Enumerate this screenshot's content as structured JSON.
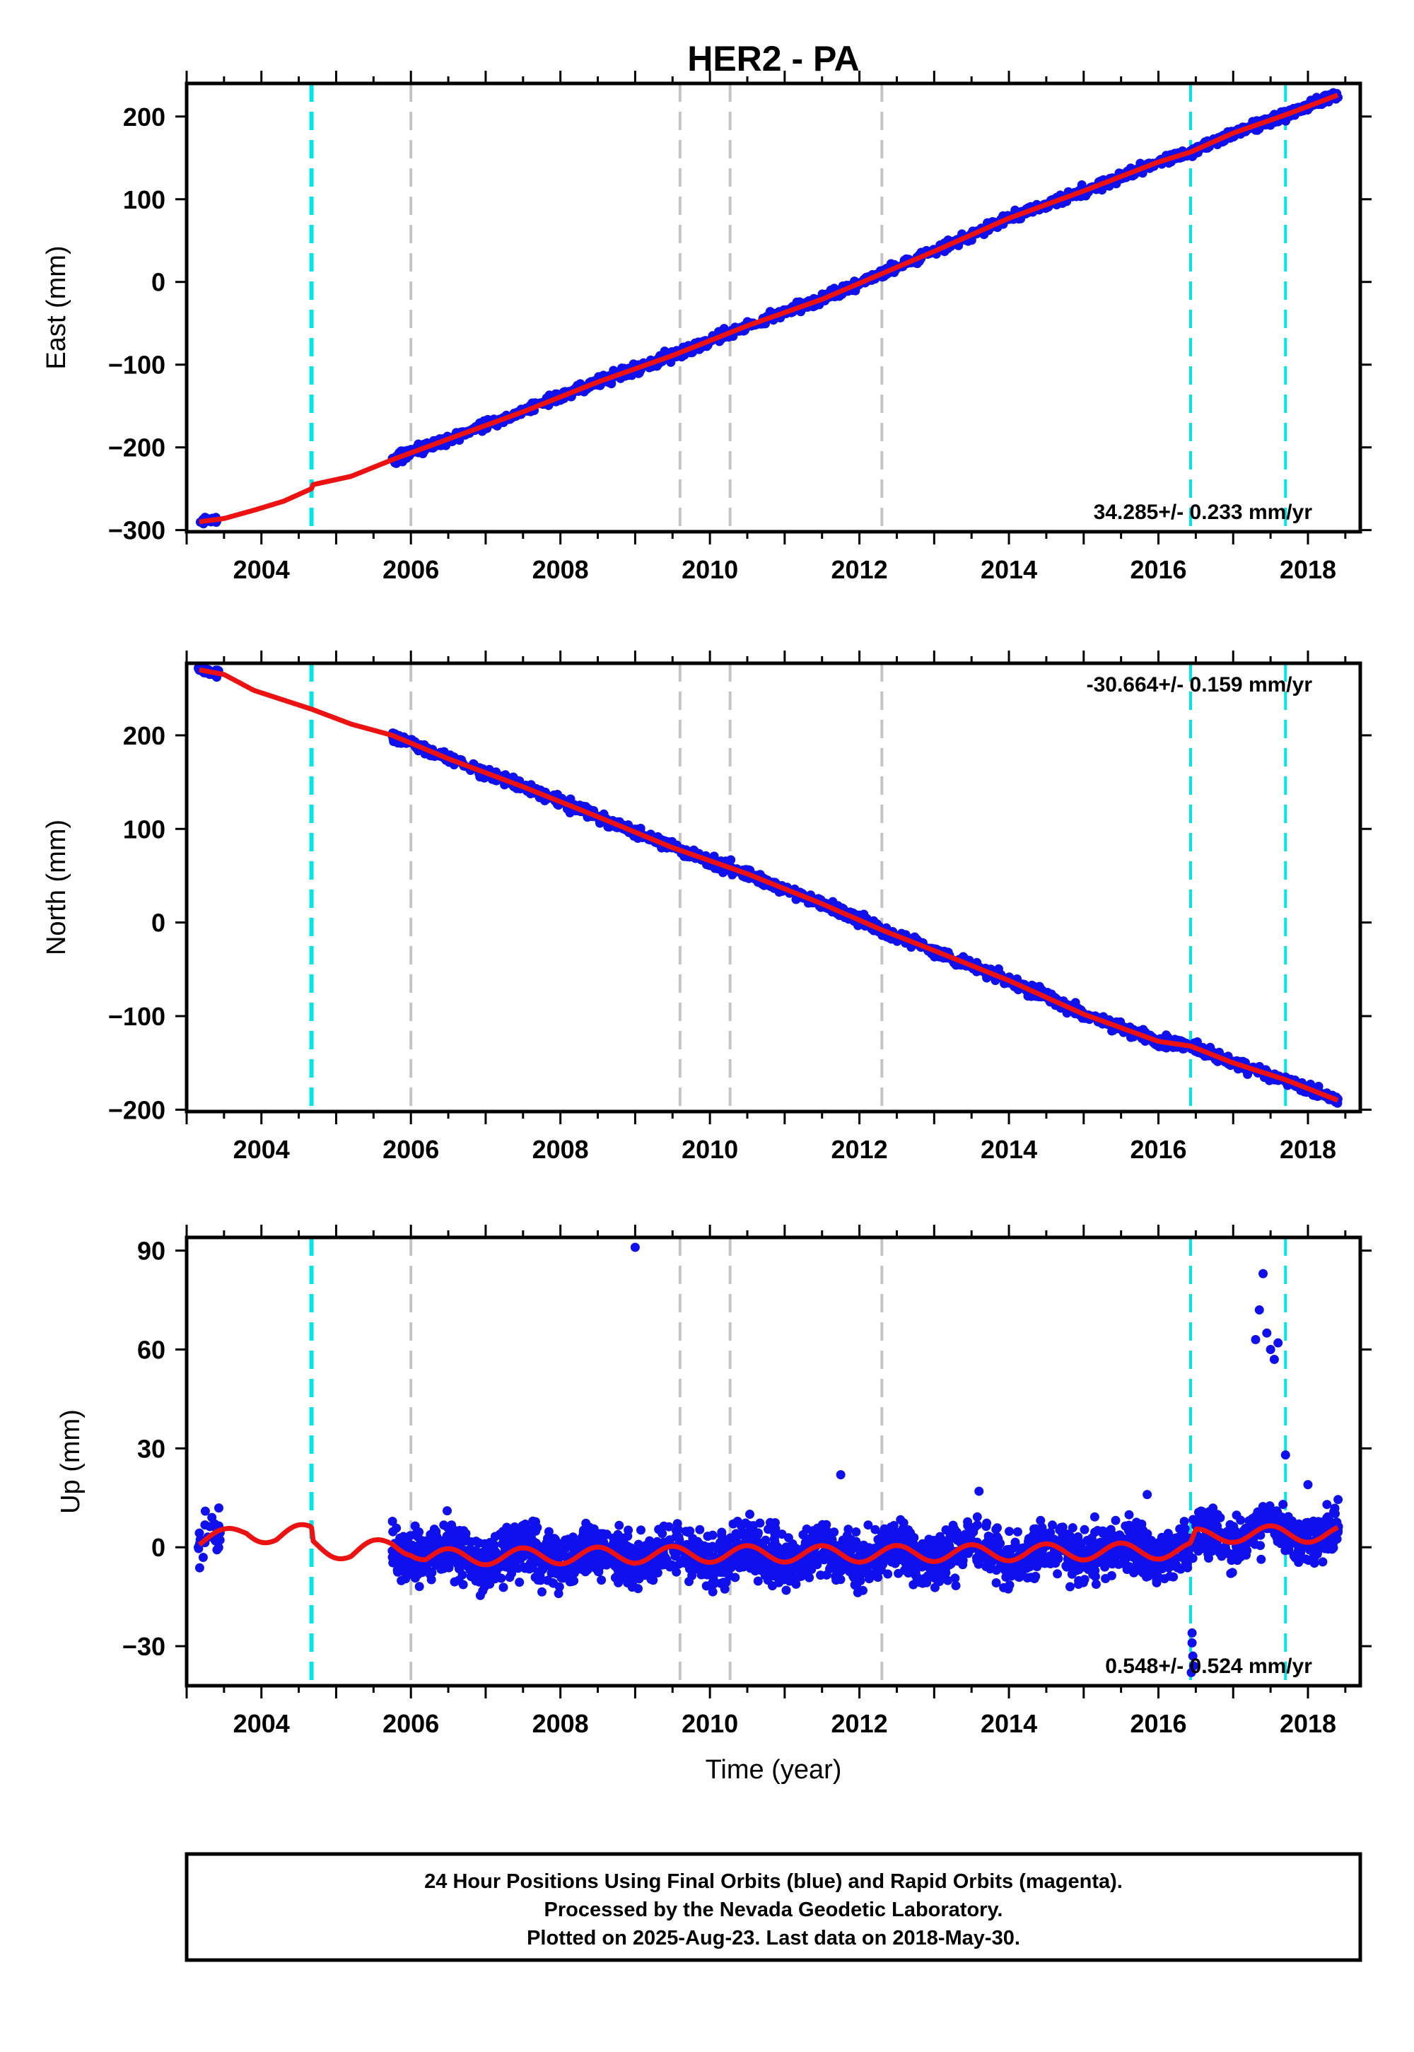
{
  "title": "HER2 - PA",
  "xlabel": "Time (year)",
  "colors": {
    "final_points": "#1010ee",
    "model_line": "#ee1111",
    "equipment_change": "#00e6e6",
    "other_event": "#c4c4c4",
    "frame": "#000000"
  },
  "footer": {
    "line1": "24 Hour Positions Using Final Orbits (blue) and Rapid Orbits (magenta).",
    "line2": "Processed by the Nevada Geodetic Laboratory.",
    "line3": "Plotted on 2025-Aug-23. Last data on 2018-May-30."
  },
  "chart_data": [
    {
      "type": "scatter",
      "component": "east",
      "ylabel": "East (mm)",
      "xlim": [
        2003.0,
        2018.7
      ],
      "ylim": [
        -302,
        240
      ],
      "xticks": [
        2004,
        2006,
        2008,
        2010,
        2012,
        2014,
        2016,
        2018
      ],
      "yticks": [
        -300,
        -200,
        -100,
        0,
        100,
        200
      ],
      "grid": false,
      "rate_text": "34.285+/- 0.233 mm/yr",
      "rate_position": "bottom-right",
      "equipment_changes": [
        2004.67,
        2016.43,
        2017.7
      ],
      "other_events": [
        2006.0,
        2009.6,
        2010.27,
        2012.3
      ],
      "model_line": [
        [
          2003.17,
          -290
        ],
        [
          2003.5,
          -286
        ],
        [
          2003.9,
          -276
        ],
        [
          2004.3,
          -265
        ],
        [
          2004.67,
          -250
        ],
        [
          2004.69,
          -245
        ],
        [
          2005.2,
          -235
        ],
        [
          2005.75,
          -215
        ],
        [
          2006.5,
          -190
        ],
        [
          2007.5,
          -157
        ],
        [
          2008.5,
          -121
        ],
        [
          2009.5,
          -89
        ],
        [
          2010.5,
          -53
        ],
        [
          2011.5,
          -21
        ],
        [
          2012.3,
          10
        ],
        [
          2013.0,
          37
        ],
        [
          2014.0,
          77
        ],
        [
          2015.0,
          110
        ],
        [
          2016.0,
          145
        ],
        [
          2016.43,
          157
        ],
        [
          2017.0,
          180
        ],
        [
          2017.7,
          202
        ],
        [
          2018.4,
          226
        ]
      ],
      "point_segments": [
        {
          "x_range": [
            2003.15,
            2003.45
          ],
          "n": 28,
          "scatter": 2
        },
        {
          "x_range": [
            2005.75,
            2018.41
          ],
          "n": 1300,
          "scatter": 3
        }
      ]
    },
    {
      "type": "scatter",
      "component": "north",
      "ylabel": "North (mm)",
      "xlim": [
        2003.0,
        2018.7
      ],
      "ylim": [
        -202,
        277
      ],
      "xticks": [
        2004,
        2006,
        2008,
        2010,
        2012,
        2014,
        2016,
        2018
      ],
      "yticks": [
        -200,
        -100,
        0,
        100,
        200
      ],
      "grid": false,
      "rate_text": "-30.664+/- 0.159 mm/yr",
      "rate_position": "top-right",
      "equipment_changes": [
        2004.67,
        2016.43,
        2017.7
      ],
      "other_events": [
        2006.0,
        2009.6,
        2010.27,
        2012.3
      ],
      "model_line": [
        [
          2003.17,
          270
        ],
        [
          2003.5,
          265
        ],
        [
          2003.9,
          248
        ],
        [
          2004.4,
          235
        ],
        [
          2004.67,
          228
        ],
        [
          2005.2,
          212
        ],
        [
          2005.75,
          200
        ],
        [
          2006.5,
          175
        ],
        [
          2007.5,
          145
        ],
        [
          2008.5,
          113
        ],
        [
          2009.5,
          80
        ],
        [
          2010.5,
          52
        ],
        [
          2011.5,
          20
        ],
        [
          2012.3,
          -8
        ],
        [
          2013.0,
          -30
        ],
        [
          2014.0,
          -62
        ],
        [
          2015.0,
          -98
        ],
        [
          2016.0,
          -127
        ],
        [
          2016.43,
          -132
        ],
        [
          2017.0,
          -150
        ],
        [
          2017.7,
          -168
        ],
        [
          2018.4,
          -190
        ]
      ],
      "point_segments": [
        {
          "x_range": [
            2003.15,
            2003.45
          ],
          "n": 28,
          "scatter": 2
        },
        {
          "x_range": [
            2005.75,
            2018.41
          ],
          "n": 1300,
          "scatter": 3
        }
      ]
    },
    {
      "type": "scatter",
      "component": "up",
      "ylabel": "Up (mm)",
      "xlim": [
        2003.0,
        2018.7
      ],
      "ylim": [
        -42,
        94
      ],
      "xticks": [
        2004,
        2006,
        2008,
        2010,
        2012,
        2014,
        2016,
        2018
      ],
      "yticks": [
        -30,
        0,
        30,
        60,
        90
      ],
      "grid": false,
      "rate_text": "0.548+/- 0.524 mm/yr",
      "rate_position": "bottom-right",
      "equipment_changes": [
        2004.67,
        2016.43,
        2017.7
      ],
      "other_events": [
        2006.0,
        2009.6,
        2010.27,
        2012.3
      ],
      "seasonal_amplitude_mm": 2.5,
      "model_line": [
        [
          2003.17,
          2
        ],
        [
          2003.5,
          3
        ],
        [
          2003.8,
          5
        ],
        [
          2004.2,
          3
        ],
        [
          2004.67,
          5
        ],
        [
          2004.69,
          1
        ],
        [
          2005.2,
          -2
        ],
        [
          2005.75,
          1
        ],
        [
          2006.0,
          0
        ],
        [
          2006.2,
          -3
        ],
        [
          2010.3,
          -2
        ],
        [
          2012.3,
          -2
        ],
        [
          2016.43,
          -1
        ],
        [
          2016.5,
          3
        ],
        [
          2017.0,
          4
        ],
        [
          2017.7,
          4
        ],
        [
          2018.4,
          4
        ]
      ],
      "point_segments": [
        {
          "x_range": [
            2003.15,
            2003.45
          ],
          "n": 28,
          "scatter": 4
        },
        {
          "x_range": [
            2005.75,
            2018.41
          ],
          "n": 2600,
          "scatter": 4
        }
      ],
      "outliers": [
        [
          2009.0,
          91
        ],
        [
          2017.4,
          83
        ],
        [
          2017.35,
          72
        ],
        [
          2017.3,
          63
        ],
        [
          2017.45,
          65
        ],
        [
          2017.5,
          60
        ],
        [
          2017.55,
          57
        ],
        [
          2017.6,
          62
        ],
        [
          2017.7,
          28
        ],
        [
          2016.45,
          -26
        ],
        [
          2016.45,
          -29
        ],
        [
          2016.46,
          -33
        ],
        [
          2016.47,
          -36
        ],
        [
          2016.44,
          -38
        ],
        [
          2011.75,
          22
        ],
        [
          2013.6,
          17
        ],
        [
          2015.85,
          16
        ],
        [
          2018.0,
          19
        ]
      ]
    }
  ]
}
